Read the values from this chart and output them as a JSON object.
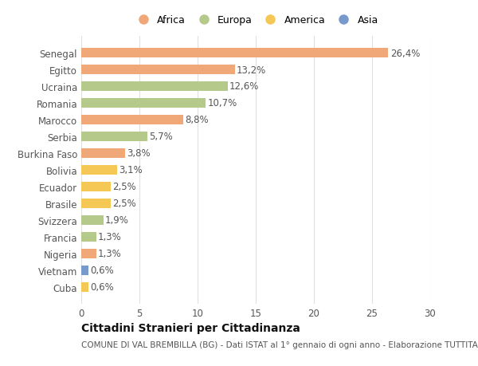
{
  "countries": [
    "Senegal",
    "Egitto",
    "Ucraina",
    "Romania",
    "Marocco",
    "Serbia",
    "Burkina Faso",
    "Bolivia",
    "Ecuador",
    "Brasile",
    "Svizzera",
    "Francia",
    "Nigeria",
    "Vietnam",
    "Cuba"
  ],
  "values": [
    26.4,
    13.2,
    12.6,
    10.7,
    8.8,
    5.7,
    3.8,
    3.1,
    2.5,
    2.5,
    1.9,
    1.3,
    1.3,
    0.6,
    0.6
  ],
  "labels": [
    "26,4%",
    "13,2%",
    "12,6%",
    "10,7%",
    "8,8%",
    "5,7%",
    "3,8%",
    "3,1%",
    "2,5%",
    "2,5%",
    "1,9%",
    "1,3%",
    "1,3%",
    "0,6%",
    "0,6%"
  ],
  "continents": [
    "Africa",
    "Africa",
    "Europa",
    "Europa",
    "Africa",
    "Europa",
    "Africa",
    "America",
    "America",
    "America",
    "Europa",
    "Europa",
    "Africa",
    "Asia",
    "America"
  ],
  "continent_colors": {
    "Africa": "#F0A878",
    "Europa": "#B5C98A",
    "America": "#F5C855",
    "Asia": "#7799CC"
  },
  "legend_order": [
    "Africa",
    "Europa",
    "America",
    "Asia"
  ],
  "title": "Cittadini Stranieri per Cittadinanza",
  "subtitle": "COMUNE DI VAL BREMBILLA (BG) - Dati ISTAT al 1° gennaio di ogni anno - Elaborazione TUTTITALIA.IT",
  "xlim": [
    0,
    30
  ],
  "xticks": [
    0,
    5,
    10,
    15,
    20,
    25,
    30
  ],
  "background_color": "#ffffff",
  "grid_color": "#e0e0e0",
  "text_color": "#555555",
  "title_fontsize": 10,
  "subtitle_fontsize": 7.5,
  "tick_fontsize": 8.5,
  "label_fontsize": 8.5,
  "legend_fontsize": 9
}
